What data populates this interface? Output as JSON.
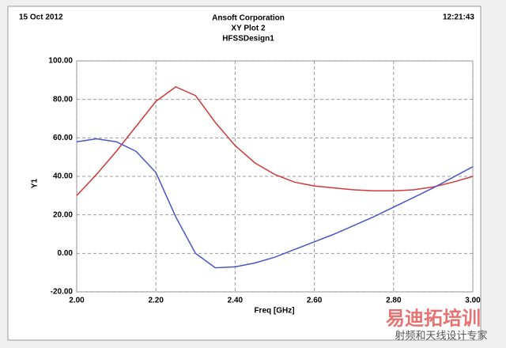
{
  "chart_data": {
    "type": "line",
    "date": "15 Oct 2012",
    "time": "12:21:43",
    "company": "Ansoft Corporation",
    "title": "XY Plot 2",
    "subtitle": "HFSSDesign1",
    "x_label": "Freq [GHz]",
    "y_label": "Y1",
    "x": [
      2.0,
      2.05,
      2.1,
      2.15,
      2.2,
      2.25,
      2.3,
      2.35,
      2.4,
      2.45,
      2.5,
      2.55,
      2.6,
      2.65,
      2.7,
      2.75,
      2.8,
      2.85,
      2.9,
      2.95,
      3.0
    ],
    "series": [
      {
        "color": "#d03a3a",
        "values": [
          30,
          41,
          53,
          66,
          79,
          86.5,
          82,
          68,
          56,
          47,
          41,
          37,
          35,
          34,
          33,
          32.5,
          32.5,
          33,
          34.5,
          37,
          40
        ]
      },
      {
        "color": "#4a55c8",
        "values": [
          58,
          59.5,
          58,
          53,
          42,
          19,
          0,
          -7.5,
          -7,
          -5,
          -2,
          2,
          6,
          10,
          14.5,
          19,
          24,
          29,
          34,
          39.5,
          45
        ]
      }
    ],
    "xlim": [
      2.0,
      3.0
    ],
    "ylim": [
      -20,
      100
    ],
    "xticks": [
      {
        "value": 2.0,
        "label": "2.00"
      },
      {
        "value": 2.2,
        "label": "2.20"
      },
      {
        "value": 2.4,
        "label": "2.40"
      },
      {
        "value": 2.6,
        "label": "2.60"
      },
      {
        "value": 2.8,
        "label": "2.80"
      },
      {
        "value": 3.0,
        "label": "3.00"
      }
    ],
    "yticks": [
      {
        "value": -20,
        "label": "-20.00"
      },
      {
        "value": 0,
        "label": "0.00"
      },
      {
        "value": 20,
        "label": "20.00"
      },
      {
        "value": 40,
        "label": "40.00"
      },
      {
        "value": 60,
        "label": "60.00"
      },
      {
        "value": 80,
        "label": "80.00"
      },
      {
        "value": 100,
        "label": "100.00"
      }
    ],
    "grid": true,
    "watermark": "易迪拓培训",
    "watermark_sub": "射频和天线设计专家"
  }
}
